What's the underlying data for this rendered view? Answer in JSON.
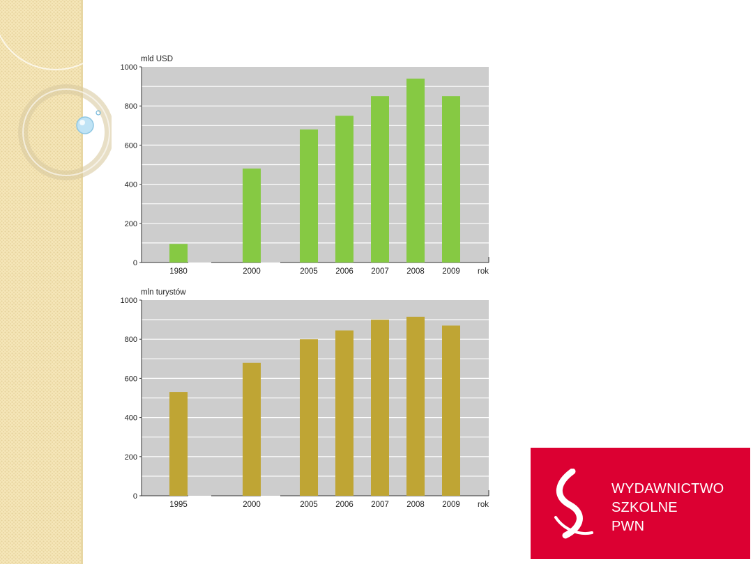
{
  "colors": {
    "panel": "#f5e6b8",
    "plot_bg": "#cdcdcd",
    "green_bar": "#86c943",
    "gold_bar": "#bfa534",
    "brand_red": "#dc0032"
  },
  "logo": {
    "line1": "WYDAWNICTWO",
    "line2": "SZKOLNE",
    "line3": "PWN"
  },
  "chart_data": [
    {
      "type": "bar",
      "ylabel": "mld USD",
      "xlabel": "rok",
      "categories": [
        "1980",
        "2000",
        "2005",
        "2006",
        "2007",
        "2008",
        "2009"
      ],
      "values": [
        95,
        480,
        680,
        750,
        850,
        940,
        850
      ],
      "ylim": [
        0,
        1000
      ],
      "yticks": [
        0,
        200,
        400,
        600,
        800,
        1000
      ],
      "grid": true,
      "bar_color": "#86c943"
    },
    {
      "type": "bar",
      "ylabel": "mln turystów",
      "xlabel": "rok",
      "categories": [
        "1995",
        "2000",
        "2005",
        "2006",
        "2007",
        "2008",
        "2009"
      ],
      "values": [
        530,
        680,
        800,
        845,
        900,
        915,
        870
      ],
      "ylim": [
        0,
        1000
      ],
      "yticks": [
        0,
        200,
        400,
        600,
        800,
        1000
      ],
      "grid": true,
      "bar_color": "#bfa534"
    }
  ]
}
